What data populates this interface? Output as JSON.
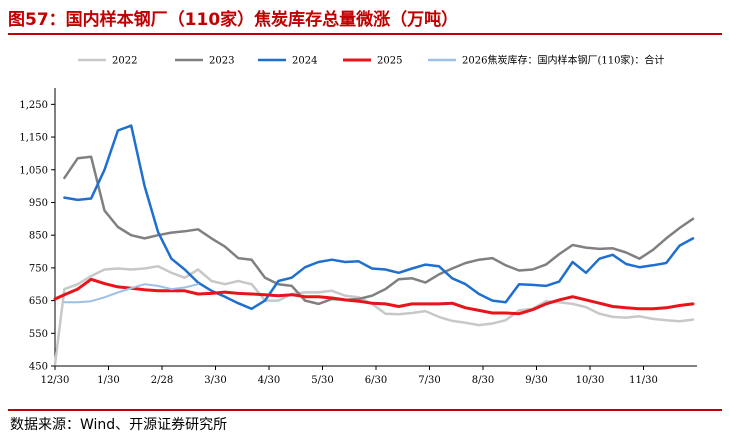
{
  "header": {
    "title": "图57：国内样本钢厂（110家）焦炭库存总量微涨（万吨）"
  },
  "footer": {
    "source": "数据来源：Wind、开源证券研究所"
  },
  "colors": {
    "2022": "#c8c8c8",
    "2023": "#808080",
    "2024": "#1f6fd0",
    "2025": "#e8141c",
    "2026": "#9ebfe6"
  },
  "chart_data": {
    "type": "line",
    "title": "",
    "xlabel": "",
    "ylabel": "",
    "ylim": [
      450,
      1300
    ],
    "yticks": [
      450,
      550,
      650,
      750,
      850,
      950,
      1050,
      1150,
      1250
    ],
    "ytick_labels": [
      "450",
      "550",
      "650",
      "750",
      "850",
      "950",
      "1,050",
      "1,150",
      "1,250"
    ],
    "xlim": [
      0,
      48
    ],
    "xticks": [
      0,
      4,
      8,
      12,
      16,
      20,
      24,
      28,
      32,
      36,
      40,
      44
    ],
    "xtick_labels": [
      "12/30",
      "1/30",
      "2/28",
      "3/30",
      "4/30",
      "5/30",
      "6/30",
      "7/30",
      "8/30",
      "9/30",
      "10/30",
      "11/30"
    ],
    "legend_position": "top",
    "grid": false,
    "series": [
      {
        "name": "2022",
        "x": [
          0,
          0.7,
          1.7,
          2.7,
          3.7,
          4.7,
          5.7,
          6.7,
          7.7,
          8.7,
          9.7,
          10.7,
          11.7,
          12.7,
          13.7,
          14.7,
          15.7,
          16.7,
          17.7,
          18.7,
          19.7,
          20.7,
          21.7,
          22.7,
          23.7,
          24.7,
          25.7,
          26.7,
          27.7,
          28.7,
          29.7,
          30.7,
          31.7,
          32.7,
          33.7,
          34.7,
          35.7,
          36.7,
          37.7,
          38.7,
          39.7,
          40.7,
          41.7,
          42.7,
          43.7,
          44.7,
          45.7,
          46.7,
          47.7
        ],
        "values": [
          455,
          685,
          700,
          725,
          745,
          748,
          745,
          748,
          755,
          735,
          720,
          745,
          710,
          700,
          710,
          700,
          650,
          650,
          670,
          675,
          675,
          680,
          665,
          660,
          640,
          610,
          608,
          612,
          618,
          600,
          588,
          582,
          575,
          580,
          590,
          620,
          625,
          648,
          645,
          640,
          630,
          610,
          600,
          598,
          602,
          594,
          590,
          587,
          592
        ]
      },
      {
        "name": "2023",
        "x": [
          0.7,
          1.7,
          2.7,
          3.7,
          4.7,
          5.7,
          6.7,
          7.7,
          8.7,
          9.7,
          10.7,
          11.7,
          12.7,
          13.7,
          14.7,
          15.7,
          16.7,
          17.7,
          18.7,
          19.7,
          20.7,
          21.7,
          22.7,
          23.7,
          24.7,
          25.7,
          26.7,
          27.7,
          28.7,
          29.7,
          30.7,
          31.7,
          32.7,
          33.7,
          34.7,
          35.7,
          36.7,
          37.7,
          38.7,
          39.7,
          40.7,
          41.7,
          42.7,
          43.7,
          44.7,
          45.7,
          46.7,
          47.7
        ],
        "values": [
          1025,
          1085,
          1090,
          925,
          875,
          850,
          840,
          850,
          858,
          862,
          868,
          840,
          815,
          780,
          775,
          720,
          700,
          695,
          650,
          640,
          655,
          652,
          655,
          665,
          685,
          715,
          718,
          705,
          730,
          748,
          765,
          775,
          780,
          758,
          742,
          745,
          760,
          792,
          820,
          812,
          808,
          810,
          797,
          778,
          805,
          840,
          872,
          900
        ]
      },
      {
        "name": "2024",
        "x": [
          0.7,
          1.7,
          2.7,
          3.7,
          4.7,
          5.7,
          6.7,
          7.7,
          8.7,
          9.7,
          10.7,
          11.7,
          12.7,
          13.7,
          14.7,
          15.7,
          16.7,
          17.7,
          18.7,
          19.7,
          20.7,
          21.7,
          22.7,
          23.7,
          24.7,
          25.7,
          26.7,
          27.7,
          28.7,
          29.7,
          30.7,
          31.7,
          32.7,
          33.7,
          34.7,
          35.7,
          36.7,
          37.7,
          38.7,
          39.7,
          40.7,
          41.7,
          42.7,
          43.7,
          44.7,
          45.7,
          46.7,
          47.7
        ],
        "values": [
          965,
          958,
          962,
          1050,
          1170,
          1185,
          1000,
          860,
          778,
          745,
          705,
          680,
          662,
          642,
          625,
          650,
          710,
          720,
          752,
          768,
          775,
          768,
          770,
          748,
          745,
          735,
          748,
          760,
          755,
          718,
          700,
          670,
          650,
          645,
          700,
          698,
          695,
          708,
          768,
          735,
          778,
          790,
          762,
          752,
          758,
          765,
          818,
          840
        ]
      },
      {
        "name": "2025",
        "x": [
          0,
          0.7,
          1.7,
          2.7,
          3.7,
          4.7,
          5.7,
          6.7,
          7.7,
          8.7,
          9.7,
          10.7,
          11.7,
          12.7,
          13.7,
          14.7,
          15.7,
          16.7,
          17.7,
          18.7,
          19.7,
          20.7,
          21.7,
          22.7,
          23.7,
          24.7,
          25.7,
          26.7,
          27.7,
          28.7,
          29.7,
          30.7,
          31.7,
          32.7,
          33.7,
          34.7,
          35.7,
          36.7,
          37.7,
          38.7,
          39.7,
          40.7,
          41.7,
          42.7,
          43.7,
          44.7,
          45.7,
          46.7,
          47.7
        ],
        "values": [
          655,
          668,
          685,
          715,
          702,
          692,
          688,
          683,
          680,
          680,
          680,
          670,
          672,
          676,
          672,
          670,
          668,
          665,
          668,
          662,
          662,
          658,
          652,
          648,
          642,
          640,
          632,
          640,
          640,
          640,
          642,
          628,
          620,
          612,
          612,
          610,
          622,
          640,
          652,
          662,
          652,
          642,
          632,
          628,
          625,
          625,
          628,
          635,
          640
        ]
      },
      {
        "name": "2026焦炭库存：国内样本钢厂(110家)：合计",
        "x": [
          0.7,
          1.7,
          2.7,
          3.7,
          4.7,
          5.7,
          6.7,
          7.7,
          8.7,
          9.7,
          10.7
        ],
        "values": [
          645,
          645,
          648,
          660,
          675,
          688,
          700,
          695,
          685,
          690,
          700
        ]
      }
    ]
  },
  "legend": [
    {
      "key": "2022",
      "label": "2022"
    },
    {
      "key": "2023",
      "label": "2023"
    },
    {
      "key": "2024",
      "label": "2024"
    },
    {
      "key": "2025",
      "label": "2025"
    },
    {
      "key": "2026",
      "label": "2026焦炭库存：国内样本钢厂(110家)：合计"
    }
  ]
}
